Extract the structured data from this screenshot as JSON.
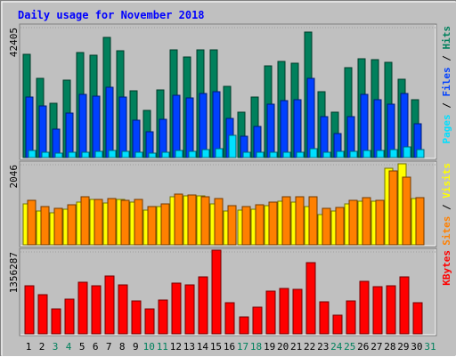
{
  "title": "Daily usage for November 2018",
  "colors": {
    "hits": "#00805c",
    "files": "#0040ff",
    "pages": "#00e0ff",
    "visits": "#ffff00",
    "sites": "#ff8000",
    "kbytes": "#ff0000",
    "title": "#0000ff",
    "weekend_day": "#00805c"
  },
  "chart_data": [
    {
      "type": "bar",
      "panel": "hits-files-pages",
      "axis_label": "42405",
      "y_max": 42405,
      "legend": [
        {
          "key": "pages",
          "text": "Pages"
        },
        {
          "key": "sep1",
          "text": " / "
        },
        {
          "key": "files",
          "text": "Files"
        },
        {
          "key": "sep2",
          "text": " / "
        },
        {
          "key": "hits",
          "text": "Hits"
        }
      ],
      "series": [
        {
          "name": "Hits",
          "color_key": "hits",
          "values": [
            33100,
            25500,
            17500,
            24800,
            33800,
            32900,
            38700,
            34500,
            21400,
            15100,
            21700,
            34800,
            32400,
            34800,
            34800,
            23000,
            14600,
            19600,
            29500,
            31000,
            30500,
            40500,
            21200,
            14500,
            29000,
            31800,
            31500,
            30600,
            25200,
            18500,
            0
          ]
        },
        {
          "name": "Files",
          "color_key": "files",
          "values": [
            19600,
            16600,
            9300,
            14300,
            20300,
            19900,
            22600,
            19400,
            11900,
            8400,
            12400,
            20000,
            19100,
            20500,
            21300,
            12500,
            6800,
            10100,
            17300,
            18400,
            18500,
            25400,
            13200,
            7800,
            13300,
            20200,
            18600,
            17100,
            20600,
            10900,
            0
          ]
        },
        {
          "name": "Pages",
          "color_key": "pages",
          "values": [
            2300,
            1700,
            1500,
            1700,
            1800,
            2000,
            2400,
            1900,
            1800,
            1500,
            1700,
            2200,
            2000,
            2500,
            2800,
            7200,
            1600,
            1700,
            1800,
            1800,
            1700,
            3000,
            1800,
            2000,
            2000,
            2400,
            2300,
            2600,
            3400,
            2500,
            0
          ]
        }
      ]
    },
    {
      "type": "bar",
      "panel": "visits-sites",
      "axis_label": "2046",
      "y_max": 2046,
      "legend": [
        {
          "key": "sites",
          "text": "Sites"
        },
        {
          "key": "sep",
          "text": " / "
        },
        {
          "key": "visits",
          "text": "Visits"
        }
      ],
      "series": [
        {
          "name": "Visits",
          "color_key": "visits",
          "values": [
            1020,
            850,
            800,
            900,
            1060,
            1130,
            1050,
            1130,
            1070,
            870,
            960,
            1200,
            1230,
            1220,
            1020,
            850,
            870,
            890,
            970,
            1080,
            1070,
            950,
            760,
            840,
            1020,
            1080,
            1090,
            1920,
            2020,
            1150,
            0
          ]
        },
        {
          "name": "Sites",
          "color_key": "sites",
          "values": [
            1120,
            960,
            910,
            1010,
            1200,
            1140,
            1150,
            1120,
            1130,
            950,
            1030,
            1260,
            1240,
            1200,
            1150,
            980,
            950,
            990,
            1060,
            1200,
            1210,
            1210,
            910,
            930,
            1110,
            1180,
            1120,
            1850,
            1690,
            1180,
            0
          ]
        }
      ]
    },
    {
      "type": "bar",
      "panel": "kbytes",
      "axis_label": "1356287",
      "y_max": 1356287,
      "legend": [
        {
          "key": "kbytes",
          "text": "KBytes"
        }
      ],
      "series": [
        {
          "name": "KBytes",
          "color_key": "kbytes",
          "values": [
            780000,
            640000,
            400000,
            560000,
            830000,
            780000,
            940000,
            790000,
            530000,
            400000,
            550000,
            820000,
            790000,
            920000,
            1356000,
            510000,
            270000,
            440000,
            690000,
            740000,
            720000,
            1160000,
            520000,
            300000,
            540000,
            850000,
            770000,
            780000,
            920000,
            500000,
            0
          ]
        }
      ]
    }
  ],
  "days": [
    "1",
    "2",
    "3",
    "4",
    "5",
    "6",
    "7",
    "8",
    "9",
    "10",
    "11",
    "12",
    "13",
    "14",
    "15",
    "16",
    "17",
    "18",
    "19",
    "20",
    "21",
    "22",
    "23",
    "24",
    "25",
    "26",
    "27",
    "28",
    "29",
    "30",
    "31"
  ],
  "weekend_days": [
    "3",
    "4",
    "10",
    "11",
    "17",
    "18",
    "24",
    "25",
    "31"
  ]
}
